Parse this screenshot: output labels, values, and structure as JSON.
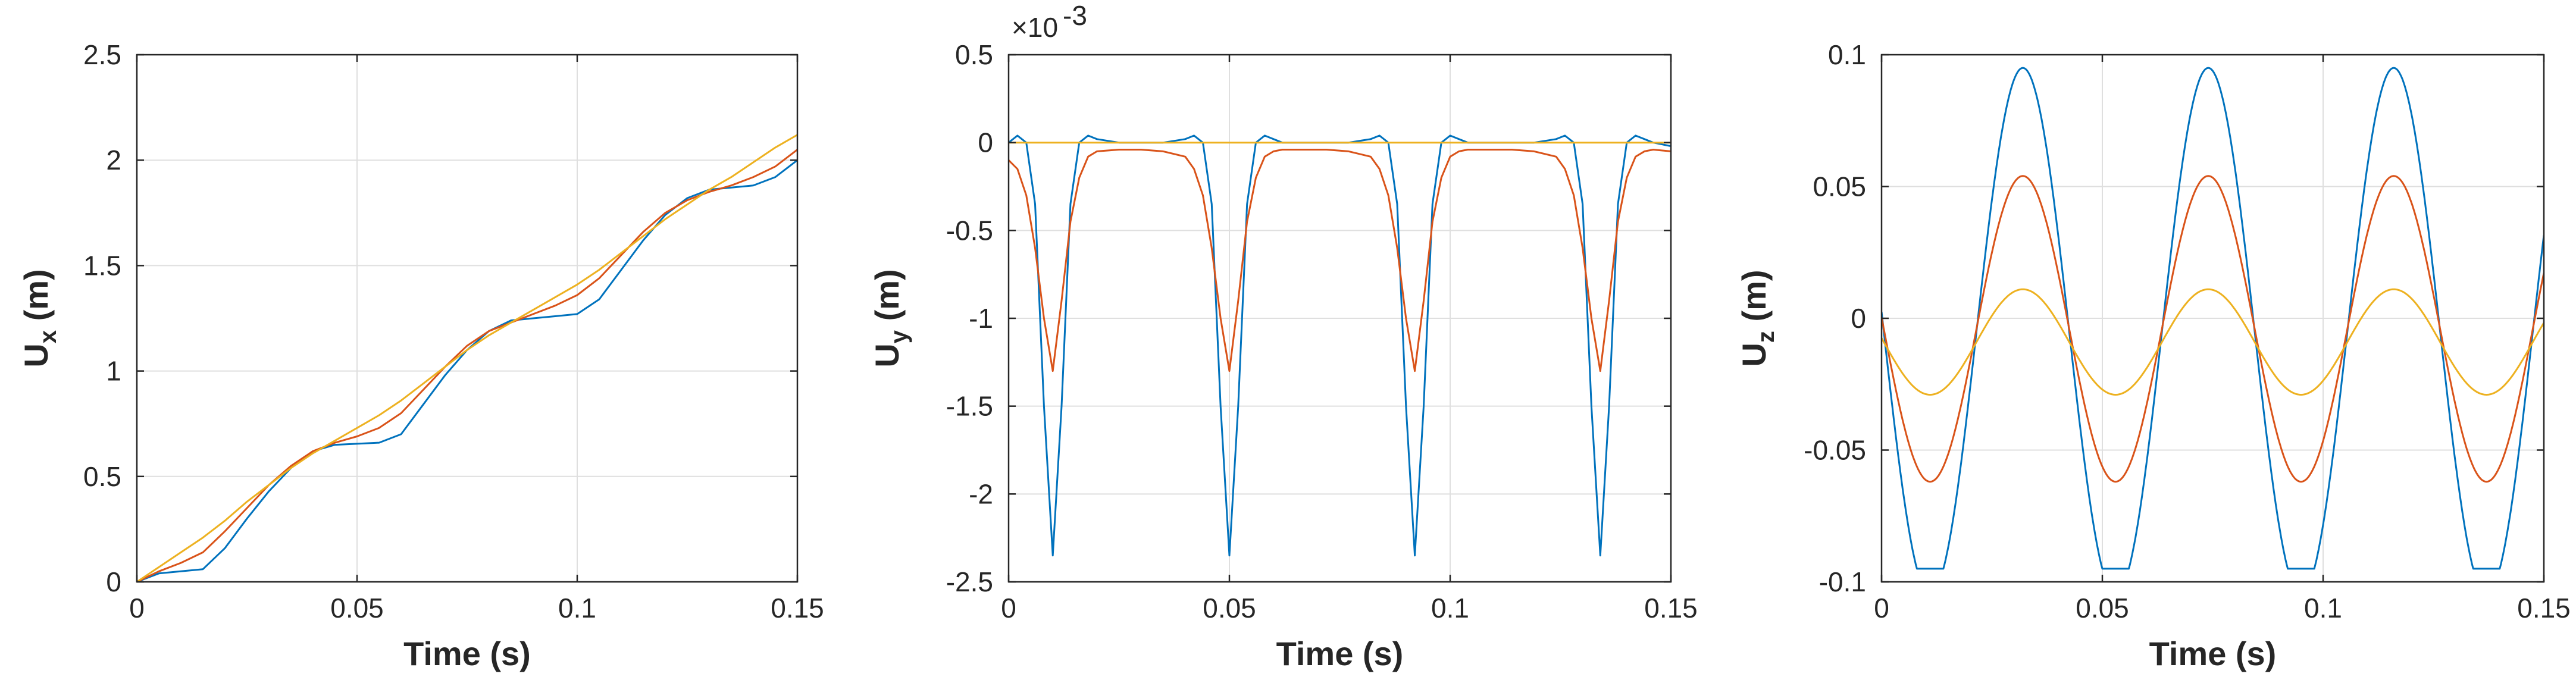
{
  "chart_data": [
    {
      "type": "line",
      "title": "",
      "xlabel": "Time (s)",
      "ylabel_main": "U",
      "ylabel_sub": "x",
      "ylabel_unit": " (m)",
      "xlim": [
        0,
        0.15
      ],
      "ylim": [
        0,
        2.5
      ],
      "grid": true,
      "xticks": [
        0,
        0.05,
        0.1,
        0.15
      ],
      "xtick_labels": [
        "0",
        "0.05",
        "0.1",
        "0.15"
      ],
      "yticks": [
        0,
        0.5,
        1,
        1.5,
        2,
        2.5
      ],
      "ytick_labels": [
        "0",
        "0.5",
        "1",
        "1.5",
        "2",
        "2.5"
      ],
      "exponent_label": "",
      "series": [
        {
          "name": "blue",
          "color": "#0072BD",
          "x": [
            0,
            0.005,
            0.01,
            0.015,
            0.02,
            0.025,
            0.03,
            0.035,
            0.04,
            0.045,
            0.05,
            0.055,
            0.06,
            0.065,
            0.07,
            0.075,
            0.08,
            0.085,
            0.09,
            0.095,
            0.1,
            0.105,
            0.11,
            0.115,
            0.12,
            0.125,
            0.13,
            0.135,
            0.14,
            0.145,
            0.15
          ],
          "y": [
            0,
            0.04,
            0.05,
            0.06,
            0.16,
            0.3,
            0.43,
            0.54,
            0.62,
            0.65,
            0.655,
            0.66,
            0.7,
            0.84,
            0.98,
            1.1,
            1.19,
            1.24,
            1.25,
            1.26,
            1.27,
            1.34,
            1.48,
            1.62,
            1.74,
            1.82,
            1.86,
            1.87,
            1.88,
            1.92,
            2.0
          ]
        },
        {
          "name": "orange",
          "color": "#D95319",
          "x": [
            0,
            0.005,
            0.01,
            0.015,
            0.02,
            0.025,
            0.03,
            0.035,
            0.04,
            0.045,
            0.05,
            0.055,
            0.06,
            0.065,
            0.07,
            0.075,
            0.08,
            0.085,
            0.09,
            0.095,
            0.1,
            0.105,
            0.11,
            0.115,
            0.12,
            0.125,
            0.13,
            0.135,
            0.14,
            0.145,
            0.15
          ],
          "y": [
            0,
            0.05,
            0.09,
            0.14,
            0.24,
            0.35,
            0.46,
            0.55,
            0.62,
            0.66,
            0.69,
            0.73,
            0.8,
            0.91,
            1.02,
            1.12,
            1.19,
            1.23,
            1.27,
            1.31,
            1.36,
            1.44,
            1.55,
            1.66,
            1.75,
            1.81,
            1.85,
            1.88,
            1.92,
            1.97,
            2.05
          ]
        },
        {
          "name": "yellow",
          "color": "#EDB120",
          "x": [
            0,
            0.005,
            0.01,
            0.015,
            0.02,
            0.025,
            0.03,
            0.035,
            0.04,
            0.045,
            0.05,
            0.055,
            0.06,
            0.065,
            0.07,
            0.075,
            0.08,
            0.085,
            0.09,
            0.095,
            0.1,
            0.105,
            0.11,
            0.115,
            0.12,
            0.125,
            0.13,
            0.135,
            0.14,
            0.145,
            0.15
          ],
          "y": [
            0,
            0.07,
            0.14,
            0.21,
            0.29,
            0.38,
            0.46,
            0.54,
            0.61,
            0.67,
            0.73,
            0.79,
            0.86,
            0.94,
            1.02,
            1.1,
            1.17,
            1.23,
            1.29,
            1.35,
            1.41,
            1.48,
            1.56,
            1.64,
            1.72,
            1.79,
            1.86,
            1.92,
            1.99,
            2.06,
            2.12
          ]
        }
      ]
    },
    {
      "type": "line",
      "title": "",
      "xlabel": "Time (s)",
      "ylabel_main": "U",
      "ylabel_sub": "y",
      "ylabel_unit": " (m)",
      "xlim": [
        0,
        0.15
      ],
      "ylim": [
        -2.5,
        0.5
      ],
      "grid": true,
      "xticks": [
        0,
        0.05,
        0.1,
        0.15
      ],
      "xtick_labels": [
        "0",
        "0.05",
        "0.1",
        "0.15"
      ],
      "yticks": [
        -2.5,
        -2,
        -1.5,
        -1,
        -0.5,
        0,
        0.5
      ],
      "ytick_labels": [
        "-2.5",
        "-2",
        "-1.5",
        "-1",
        "-0.5",
        "0",
        "0.5"
      ],
      "exponent_label": "×10",
      "exponent_power": "-3",
      "period": 0.042,
      "series": [
        {
          "name": "blue",
          "color": "#0072BD",
          "x": [
            0,
            0.002,
            0.004,
            0.006,
            0.008,
            0.01,
            0.012,
            0.014,
            0.016,
            0.018,
            0.02,
            0.025,
            0.03,
            0.035,
            0.04,
            0.042,
            0.044,
            0.046,
            0.048,
            0.05,
            0.052,
            0.054,
            0.056,
            0.058,
            0.06,
            0.062,
            0.067,
            0.072,
            0.077,
            0.082,
            0.084,
            0.086,
            0.088,
            0.09,
            0.092,
            0.094,
            0.096,
            0.098,
            0.1,
            0.102,
            0.104,
            0.109,
            0.114,
            0.119,
            0.124,
            0.126,
            0.128,
            0.13,
            0.132,
            0.134,
            0.136,
            0.138,
            0.14,
            0.142,
            0.144,
            0.146,
            0.15
          ],
          "y": [
            0,
            0.04,
            0.0,
            -0.35,
            -1.5,
            -2.35,
            -1.5,
            -0.35,
            0.0,
            0.04,
            0.02,
            0.0,
            0.0,
            0.0,
            0.02,
            0.04,
            0.0,
            -0.35,
            -1.5,
            -2.35,
            -1.5,
            -0.35,
            0.0,
            0.04,
            0.02,
            0.0,
            0.0,
            0.0,
            0.0,
            0.02,
            0.04,
            0.0,
            -0.35,
            -1.5,
            -2.35,
            -1.5,
            -0.35,
            0.0,
            0.04,
            0.02,
            0.0,
            0.0,
            0.0,
            0.0,
            0.02,
            0.04,
            0.0,
            -0.35,
            -1.5,
            -2.35,
            -1.5,
            -0.35,
            0.0,
            0.04,
            0.02,
            0.0,
            -0.02
          ]
        },
        {
          "name": "orange",
          "color": "#D95319",
          "x": [
            0,
            0.002,
            0.004,
            0.006,
            0.008,
            0.01,
            0.012,
            0.014,
            0.016,
            0.018,
            0.02,
            0.025,
            0.03,
            0.035,
            0.04,
            0.042,
            0.044,
            0.046,
            0.048,
            0.05,
            0.052,
            0.054,
            0.056,
            0.058,
            0.06,
            0.062,
            0.067,
            0.072,
            0.077,
            0.082,
            0.084,
            0.086,
            0.088,
            0.09,
            0.092,
            0.094,
            0.096,
            0.098,
            0.1,
            0.102,
            0.104,
            0.109,
            0.114,
            0.119,
            0.124,
            0.126,
            0.128,
            0.13,
            0.132,
            0.134,
            0.136,
            0.138,
            0.14,
            0.142,
            0.144,
            0.146,
            0.15
          ],
          "y": [
            -0.1,
            -0.15,
            -0.3,
            -0.6,
            -1.0,
            -1.3,
            -0.9,
            -0.45,
            -0.2,
            -0.08,
            -0.05,
            -0.04,
            -0.04,
            -0.05,
            -0.08,
            -0.15,
            -0.3,
            -0.6,
            -1.0,
            -1.3,
            -0.9,
            -0.45,
            -0.2,
            -0.08,
            -0.05,
            -0.04,
            -0.04,
            -0.04,
            -0.05,
            -0.08,
            -0.15,
            -0.3,
            -0.6,
            -1.0,
            -1.3,
            -0.9,
            -0.45,
            -0.2,
            -0.08,
            -0.05,
            -0.04,
            -0.04,
            -0.04,
            -0.05,
            -0.08,
            -0.15,
            -0.3,
            -0.6,
            -1.0,
            -1.3,
            -0.9,
            -0.45,
            -0.2,
            -0.08,
            -0.05,
            -0.04,
            -0.05
          ]
        },
        {
          "name": "yellow",
          "color": "#EDB120",
          "x": [
            0,
            0.15
          ],
          "y": [
            0,
            0
          ]
        }
      ]
    },
    {
      "type": "line",
      "title": "",
      "xlabel": "Time (s)",
      "ylabel_main": "U",
      "ylabel_sub": "z",
      "ylabel_unit": " (m)",
      "xlim": [
        0,
        0.15
      ],
      "ylim": [
        -0.1,
        0.1
      ],
      "grid": true,
      "xticks": [
        0,
        0.05,
        0.1,
        0.15
      ],
      "xtick_labels": [
        "0",
        "0.05",
        "0.1",
        "0.15"
      ],
      "yticks": [
        -0.1,
        -0.05,
        0,
        0.05,
        0.1
      ],
      "ytick_labels": [
        "-0.1",
        "-0.05",
        "0",
        "0.05",
        "0.1"
      ],
      "exponent_label": "",
      "period": 0.042,
      "series": [
        {
          "name": "blue",
          "color": "#0072BD",
          "amplitude": 0.1,
          "offset": -0.005,
          "peak_at": 0.032,
          "clip_min": -0.095,
          "clip_max": 0.095
        },
        {
          "name": "orange",
          "color": "#D95319",
          "amplitude": 0.058,
          "offset": -0.004,
          "peak_at": 0.032,
          "clip_min": -0.1,
          "clip_max": 0.1
        },
        {
          "name": "yellow",
          "color": "#EDB120",
          "amplitude": 0.02,
          "offset": -0.009,
          "peak_at": 0.032,
          "clip_min": -0.1,
          "clip_max": 0.1
        }
      ]
    }
  ]
}
